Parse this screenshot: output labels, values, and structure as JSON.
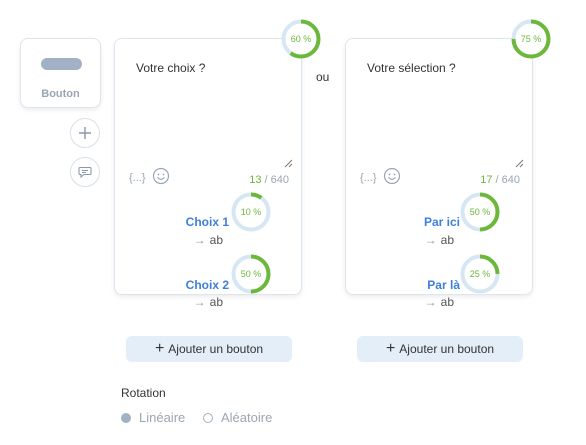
{
  "toolbox": {
    "button_tool_label": "Bouton",
    "add_icon": "plus-icon",
    "comment_icon": "comment-icon"
  },
  "separator": "ou",
  "cards": [
    {
      "prompt": "Votre choix ?",
      "completion": 60,
      "completion_label": "60 %",
      "variable_icon": "{...}",
      "counter_current": "13",
      "counter_max": " / 640",
      "choices": [
        {
          "label": "Choix 1",
          "target": "ab",
          "percent": 10,
          "percent_label": "10 %"
        },
        {
          "label": "Choix 2",
          "target": "ab",
          "percent": 50,
          "percent_label": "50 %"
        }
      ],
      "add_button_label": "Ajouter un bouton"
    },
    {
      "prompt": "Votre sélection ?",
      "completion": 75,
      "completion_label": "75 %",
      "variable_icon": "{...}",
      "counter_current": "17",
      "counter_max": " / 640",
      "choices": [
        {
          "label": "Par ici",
          "target": "ab",
          "percent": 50,
          "percent_label": "50 %"
        },
        {
          "label": "Par là",
          "target": "ab",
          "percent": 25,
          "percent_label": "25 %"
        }
      ],
      "add_button_label": "Ajouter un bouton"
    }
  ],
  "rotation": {
    "title": "Rotation",
    "options": [
      {
        "label": "Linéaire",
        "selected": true
      },
      {
        "label": "Aléatoire",
        "selected": false
      }
    ]
  },
  "colors": {
    "progress_green": "#6cb83a",
    "track_blue": "#d6e6f3",
    "link_blue": "#3d7fd9",
    "button_bg": "#e3eef8"
  }
}
